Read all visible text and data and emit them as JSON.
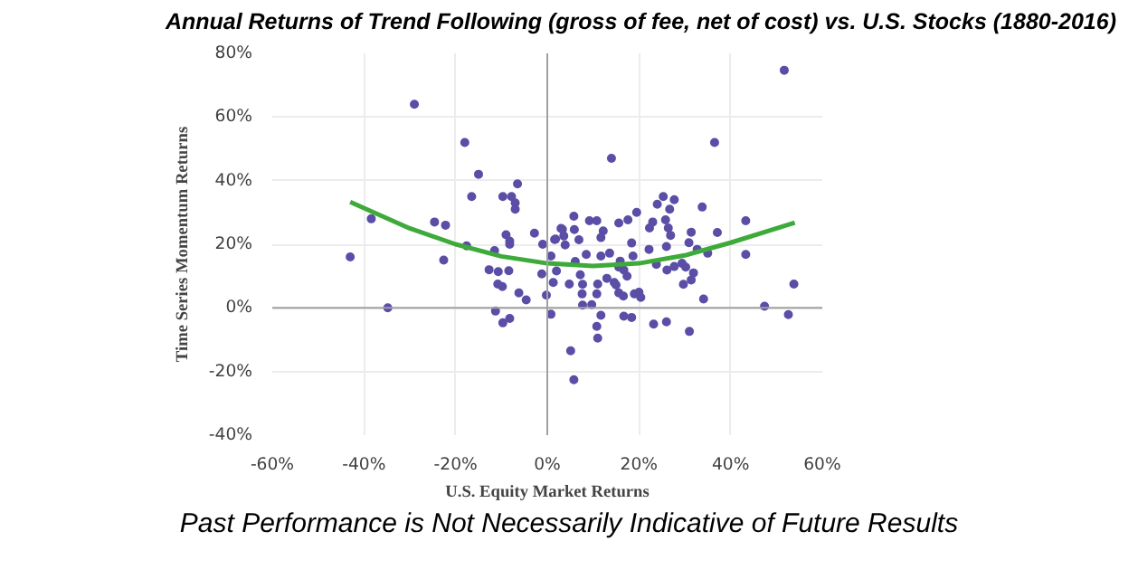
{
  "chart_data": {
    "type": "scatter",
    "title": "Annual Returns of Trend Following (gross of fee, net of cost) vs. U.S. Stocks (1880-2016)",
    "xlabel": "U.S. Equity Market Returns",
    "ylabel": "Time Series Momentum Returns",
    "annotations": [
      "Past Performance is Not Necessarily Indicative of Future Results"
    ],
    "xlim": [
      -60,
      60
    ],
    "xticks": [
      {
        "value": -60,
        "label": "-60%"
      },
      {
        "value": -40,
        "label": "-40%"
      },
      {
        "value": -20,
        "label": "-20%"
      },
      {
        "value": 0,
        "label": "0%"
      },
      {
        "value": 20,
        "label": "20%"
      },
      {
        "value": 40,
        "label": "40%"
      },
      {
        "value": 60,
        "label": "60%"
      }
    ],
    "ylim": [
      -40,
      80
    ],
    "yticks": [
      {
        "value": -40,
        "label": "-40%"
      },
      {
        "value": -20,
        "label": "-20%"
      },
      {
        "value": 0,
        "label": "0%"
      },
      {
        "value": 20,
        "label": "20%"
      },
      {
        "value": 40,
        "label": "40%"
      },
      {
        "value": 60,
        "label": "60%"
      },
      {
        "value": 80,
        "label": "80%"
      }
    ],
    "grid": true,
    "marker": "circle",
    "series": [
      {
        "color": "#5a4ea6",
        "x": [
          51.7,
          -29,
          -18,
          -15,
          -16.5,
          -6.5,
          -9.7,
          -7.8,
          -7,
          -7,
          -38.4,
          -24.6,
          -22.2,
          -43,
          -22.6,
          -17.6,
          -9,
          -8.2,
          -8.2,
          -11.5,
          -2.8,
          -1,
          3,
          1.6,
          -12.7,
          -10.7,
          -8.4,
          -10.8,
          -9.8,
          -1.2,
          -34.8,
          -6.2,
          -4.6,
          -0.2,
          1.3,
          -11.3,
          -8.2,
          -9.7,
          0.8,
          14,
          36.5,
          25.3,
          27.7,
          24,
          26.7,
          33.8,
          19.5,
          17.6,
          15.6,
          23,
          25.8,
          43.3,
          5.8,
          9.2,
          10.8,
          3.3,
          5.9,
          12.2,
          3.6,
          1.8,
          6.9,
          11.7,
          22.3,
          26.4,
          26.9,
          31.4,
          37.1,
          18.4,
          30.9,
          22.2,
          26,
          32.7,
          35,
          43.3,
          3.9,
          8.5,
          11.7,
          13.6,
          18.7,
          15.9,
          0.8,
          2,
          6.1,
          15.6,
          16.7,
          23.8,
          26.1,
          27.7,
          29.4,
          30.2,
          17.4,
          31.9,
          7.2,
          4.8,
          7.7,
          11,
          14.6,
          31.4,
          29.7,
          53.8,
          13,
          7.6,
          10.8,
          15,
          15.6,
          16.6,
          19,
          20,
          20.4,
          7.7,
          9.7,
          11.7,
          16.7,
          18.4,
          10.8,
          23.2,
          26,
          31,
          11,
          5.1,
          5.8,
          34.1,
          47.4,
          52.6
        ],
        "values": [
          74.7,
          64,
          52,
          42,
          35,
          39,
          35,
          35,
          33,
          31,
          28,
          27,
          26,
          16,
          15,
          19.5,
          23,
          21,
          20,
          18,
          23.5,
          20,
          25,
          21.5,
          12,
          11.4,
          11.7,
          7.5,
          6.7,
          10.7,
          0,
          4.7,
          2.5,
          4,
          8,
          -1,
          -3.3,
          -4.7,
          -2,
          47,
          52,
          35,
          34,
          32.6,
          31,
          31.7,
          30,
          27.7,
          26.7,
          27,
          27.7,
          27.4,
          28.8,
          27.4,
          27.4,
          24.7,
          24.6,
          24.2,
          22.6,
          21.6,
          21.4,
          22.1,
          25.1,
          25.1,
          22.8,
          23.8,
          23.7,
          20.4,
          20.5,
          18.4,
          19.3,
          18.4,
          17.2,
          16.8,
          19.8,
          16.8,
          16.3,
          17.2,
          16.3,
          14.7,
          16.3,
          11.6,
          14.6,
          12.8,
          11.9,
          13.7,
          11.9,
          13,
          14,
          12.8,
          10,
          11,
          10.4,
          7.5,
          7.4,
          7.5,
          8,
          8.8,
          7.4,
          7.5,
          9.3,
          4.4,
          4.4,
          7.2,
          4.7,
          3.7,
          4.4,
          4.9,
          3.3,
          0.9,
          1,
          -2.3,
          -2.6,
          -3,
          -5.8,
          -5.1,
          -4.4,
          -7.4,
          -9.5,
          -13.5,
          -22.6,
          2.8,
          0.5,
          -2.1
        ]
      },
      {
        "type": "line",
        "color": "#3daa3a",
        "marker": "none",
        "x": [
          -43,
          -30,
          -20,
          -10,
          0,
          10,
          20,
          30,
          40,
          54
        ],
        "values": [
          33.3,
          25,
          20,
          16.2,
          14,
          13.2,
          14,
          16.5,
          20.5,
          26.8
        ]
      }
    ]
  }
}
